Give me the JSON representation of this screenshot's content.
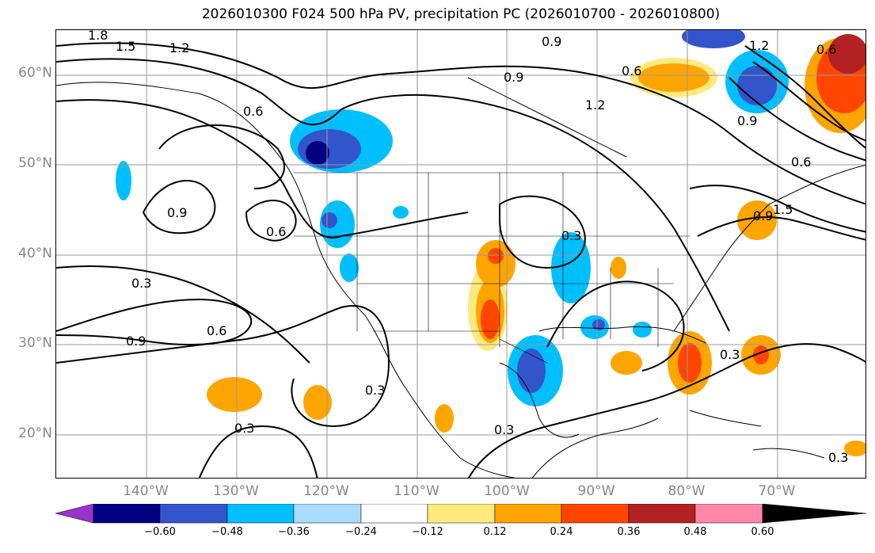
{
  "title": "2026010300 F024 500 hPa PV, precipitation PC (2026010700 - 2026010800)",
  "lat_labels": [
    "60°N",
    "50°N",
    "40°N",
    "30°N",
    "20°N"
  ],
  "lon_labels": [
    "140°W",
    "130°W",
    "120°W",
    "110°W",
    "100°W",
    "90°W",
    "80°W",
    "70°W"
  ],
  "contour_labels": [
    "1.8",
    "1.5",
    "1.2",
    "0.6",
    "0.9",
    "0.6",
    "0.3",
    "0.9",
    "0.6",
    "0.3",
    "0.3",
    "0.3",
    "0.3",
    "1.2",
    "0.9",
    "0.6",
    "0.9",
    "0.6",
    "1.5",
    "0.9",
    "0.6",
    "0.3",
    "0.3",
    "0.9",
    "1.2"
  ],
  "colorbar": {
    "ticks": [
      "−0.60",
      "−0.48",
      "−0.36",
      "−0.24",
      "−0.12",
      "0.12",
      "0.24",
      "0.36",
      "0.48",
      "0.60"
    ],
    "colors": [
      "#9933cc",
      "#000080",
      "#3355cc",
      "#00bfff",
      "#aadcff",
      "#ffffff",
      "#ffea80",
      "#ffa500",
      "#ff4500",
      "#b22222",
      "#ff88aa"
    ]
  }
}
